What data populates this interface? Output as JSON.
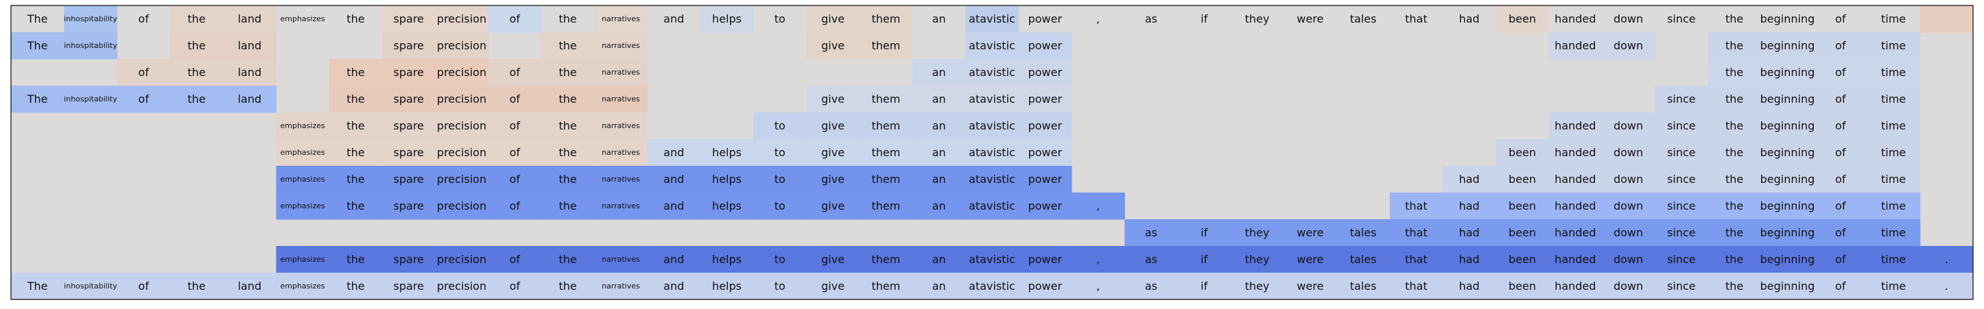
{
  "chart_data": {
    "type": "heatmap",
    "tokens": [
      "The",
      "inhospitability",
      "of",
      "the",
      "land",
      "emphasizes",
      "the",
      "spare",
      "precision",
      "of",
      "the",
      "narratives",
      "and",
      "helps",
      "to",
      "give",
      "them",
      "an",
      "atavistic",
      "power",
      ",",
      "as",
      "if",
      "they",
      "were",
      "tales",
      "that",
      "had",
      "been",
      "handed",
      "down",
      "since",
      "the",
      "beginning",
      "of",
      "time",
      "."
    ],
    "small_tokens": [
      1,
      5,
      11
    ],
    "rows": [
      {
        "show": [
          1,
          1,
          1,
          1,
          1,
          1,
          1,
          1,
          1,
          1,
          1,
          1,
          1,
          1,
          1,
          1,
          1,
          1,
          1,
          1,
          1,
          1,
          1,
          1,
          1,
          1,
          1,
          1,
          1,
          1,
          1,
          1,
          1,
          1,
          1,
          1,
          0
        ],
        "colors": [
          "",
          "#a9c4f0",
          "",
          "#e4d3c9",
          "#e4d3c9",
          "",
          "",
          "#e5d5cb",
          "#e5d5cb",
          "#cbd7ea",
          "",
          "#e3d6cd",
          "",
          "#d0d8e8",
          "",
          "#e2d5cc",
          "#e2d5cc",
          "",
          "#bccdeb",
          "",
          "",
          "",
          "",
          "",
          "",
          "",
          "",
          "",
          "#e3d5cb",
          "",
          "",
          "",
          "",
          "",
          "",
          "",
          "#e7ccc0"
        ]
      },
      {
        "show": [
          1,
          1,
          0,
          1,
          1,
          0,
          0,
          1,
          1,
          0,
          1,
          1,
          0,
          0,
          0,
          1,
          1,
          0,
          1,
          1,
          0,
          0,
          0,
          0,
          0,
          0,
          0,
          0,
          0,
          1,
          1,
          0,
          1,
          1,
          1,
          1,
          0
        ],
        "colors": [
          "#a4bef0",
          "#a4bef0",
          "",
          "#e4d0c5",
          "#e4d0c5",
          "",
          "",
          "#e3d2c7",
          "#e3d2c7",
          "",
          "#e3d4ca",
          "#e3d4ca",
          "",
          "",
          "",
          "#e3d4ca",
          "#e3d4ca",
          "",
          "#c6d3ec",
          "#c6d3ec",
          "",
          "",
          "",
          "",
          "",
          "",
          "",
          "",
          "",
          "#cdd6e9",
          "#cdd6e9",
          "",
          "#cbd5e9",
          "#cbd5e9",
          "#cbd5e9",
          "#cbd5e9",
          ""
        ]
      },
      {
        "show": [
          0,
          0,
          1,
          1,
          1,
          0,
          1,
          1,
          1,
          1,
          1,
          1,
          0,
          0,
          0,
          0,
          0,
          1,
          1,
          1,
          0,
          0,
          0,
          0,
          0,
          0,
          0,
          0,
          0,
          0,
          0,
          0,
          1,
          1,
          1,
          1,
          0
        ],
        "colors": [
          "",
          "",
          "#e3d2c8",
          "#e3d2c8",
          "#e3d2c8",
          "",
          "#e8cbbb",
          "#e8cbbb",
          "#e8cbbb",
          "#e3d2c8",
          "#e3d2c8",
          "#e3d2c8",
          "",
          "",
          "",
          "",
          "",
          "#cbd6ea",
          "#cbd6ea",
          "#cbd6ea",
          "",
          "",
          "",
          "",
          "",
          "",
          "",
          "",
          "",
          "",
          "",
          "",
          "#cbd6ea",
          "#cbd6ea",
          "#cbd6ea",
          "#cbd6ea",
          ""
        ]
      },
      {
        "show": [
          1,
          1,
          1,
          1,
          1,
          0,
          1,
          1,
          1,
          1,
          1,
          1,
          0,
          0,
          0,
          1,
          1,
          1,
          1,
          1,
          0,
          0,
          0,
          0,
          0,
          0,
          0,
          0,
          0,
          0,
          0,
          1,
          1,
          1,
          1,
          1,
          0
        ],
        "colors": [
          "#a3bdf2",
          "#a3bdf2",
          "#a3bdf2",
          "#a3bdf2",
          "#a3bdf2",
          "",
          "#e6cabc",
          "#e6cabc",
          "#e6cabc",
          "#e6cabc",
          "#e6cabc",
          "#e6cabc",
          "",
          "",
          "",
          "#d0d8e8",
          "#d0d8e8",
          "#d0d8e8",
          "#d0d8e8",
          "#d0d8e8",
          "",
          "",
          "",
          "",
          "",
          "",
          "",
          "",
          "",
          "",
          "",
          "#cbd5ea",
          "#cbd5ea",
          "#cbd5ea",
          "#cbd5ea",
          "#cbd5ea",
          ""
        ]
      },
      {
        "show": [
          0,
          0,
          0,
          0,
          0,
          1,
          1,
          1,
          1,
          1,
          1,
          1,
          0,
          0,
          1,
          1,
          1,
          1,
          1,
          1,
          0,
          0,
          0,
          0,
          0,
          0,
          0,
          0,
          0,
          1,
          1,
          1,
          1,
          1,
          1,
          1,
          0
        ],
        "colors": [
          "",
          "",
          "",
          "",
          "",
          "#e4d3ca",
          "#e4d3ca",
          "#e4d3ca",
          "#e4d3ca",
          "#e4d3ca",
          "#e4d3ca",
          "#e4d3ca",
          "",
          "",
          "#c5d2ec",
          "#c5d2ec",
          "#c5d2ec",
          "#c5d2ec",
          "#c5d2ec",
          "#c5d2ec",
          "",
          "",
          "",
          "",
          "",
          "",
          "",
          "",
          "",
          "#cbd5ea",
          "#cbd5ea",
          "#cbd5ea",
          "#cbd5ea",
          "#cbd5ea",
          "#cbd5ea",
          "#cbd5ea",
          ""
        ]
      },
      {
        "show": [
          0,
          0,
          0,
          0,
          0,
          1,
          1,
          1,
          1,
          1,
          1,
          1,
          1,
          1,
          1,
          1,
          1,
          1,
          1,
          1,
          0,
          0,
          0,
          0,
          0,
          0,
          0,
          0,
          1,
          1,
          1,
          1,
          1,
          1,
          1,
          1,
          0
        ],
        "colors": [
          "",
          "",
          "",
          "",
          "",
          "#e4d4ca",
          "#e4d4ca",
          "#e4d4ca",
          "#e4d4ca",
          "#e4d4ca",
          "#e4d4ca",
          "#e4d4ca",
          "#c9d6ec",
          "#c9d6ec",
          "#c9d6ec",
          "#c9d6ec",
          "#c9d6ec",
          "#c9d6ec",
          "#c9d6ec",
          "#c9d6ec",
          "",
          "",
          "",
          "",
          "",
          "",
          "",
          "",
          "#cbd5ea",
          "#cbd5ea",
          "#cbd5ea",
          "#cbd5ea",
          "#cbd5ea",
          "#cbd5ea",
          "#cbd5ea",
          "#cbd5ea",
          ""
        ]
      },
      {
        "show": [
          0,
          0,
          0,
          0,
          0,
          1,
          1,
          1,
          1,
          1,
          1,
          1,
          1,
          1,
          1,
          1,
          1,
          1,
          1,
          1,
          0,
          0,
          0,
          0,
          0,
          0,
          0,
          1,
          1,
          1,
          1,
          1,
          1,
          1,
          1,
          1,
          0
        ],
        "colors": [
          "",
          "",
          "",
          "",
          "",
          "#7393ed",
          "#7393ed",
          "#7393ed",
          "#7393ed",
          "#7393ed",
          "#7393ed",
          "#7393ed",
          "#7393ed",
          "#7393ed",
          "#7393ed",
          "#7393ed",
          "#7393ed",
          "#7393ed",
          "#7393ed",
          "#7393ed",
          "",
          "",
          "",
          "",
          "",
          "",
          "",
          "#cad5ea",
          "#cad5ea",
          "#cad5ea",
          "#cad5ea",
          "#cad5ea",
          "#cad5ea",
          "#cad5ea",
          "#cad5ea",
          "#cad5ea",
          ""
        ]
      },
      {
        "show": [
          0,
          0,
          0,
          0,
          0,
          1,
          1,
          1,
          1,
          1,
          1,
          1,
          1,
          1,
          1,
          1,
          1,
          1,
          1,
          1,
          1,
          0,
          0,
          0,
          0,
          0,
          1,
          1,
          1,
          1,
          1,
          1,
          1,
          1,
          1,
          1,
          0
        ],
        "colors": [
          "",
          "",
          "",
          "",
          "",
          "#7595ee",
          "#7595ee",
          "#7595ee",
          "#7595ee",
          "#7595ee",
          "#7595ee",
          "#7595ee",
          "#7595ee",
          "#7595ee",
          "#7595ee",
          "#7595ee",
          "#7595ee",
          "#7595ee",
          "#7595ee",
          "#7595ee",
          "#7595ee",
          "",
          "",
          "",
          "",
          "",
          "#9cb6f5",
          "#9cb6f5",
          "#9cb6f5",
          "#9cb6f5",
          "#9cb6f5",
          "#9cb6f5",
          "#9cb6f5",
          "#9cb6f5",
          "#9cb6f5",
          "#9cb6f5",
          ""
        ]
      },
      {
        "show": [
          0,
          0,
          0,
          0,
          0,
          0,
          0,
          0,
          0,
          0,
          0,
          0,
          0,
          0,
          0,
          0,
          0,
          0,
          0,
          0,
          0,
          1,
          1,
          1,
          1,
          1,
          1,
          1,
          1,
          1,
          1,
          1,
          1,
          1,
          1,
          1,
          0
        ],
        "colors": [
          "",
          "",
          "",
          "",
          "",
          "",
          "",
          "",
          "",
          "",
          "",
          "",
          "",
          "",
          "",
          "",
          "",
          "",
          "",
          "",
          "",
          "#7a9aee",
          "#7a9aee",
          "#7a9aee",
          "#7a9aee",
          "#7a9aee",
          "#7a9aee",
          "#7a9aee",
          "#7a9aee",
          "#7a9aee",
          "#7a9aee",
          "#7a9aee",
          "#7a9aee",
          "#7a9aee",
          "#7a9aee",
          "#7a9aee",
          ""
        ]
      },
      {
        "show": [
          0,
          0,
          0,
          0,
          0,
          1,
          1,
          1,
          1,
          1,
          1,
          1,
          1,
          1,
          1,
          1,
          1,
          1,
          1,
          1,
          1,
          1,
          1,
          1,
          1,
          1,
          1,
          1,
          1,
          1,
          1,
          1,
          1,
          1,
          1,
          1,
          1
        ],
        "colors": [
          "",
          "",
          "",
          "",
          "",
          "#5b77e0",
          "#5b77e0",
          "#5b77e0",
          "#5b77e0",
          "#5b77e0",
          "#5b77e0",
          "#5b77e0",
          "#5b77e0",
          "#5b77e0",
          "#5b77e0",
          "#5b77e0",
          "#5b77e0",
          "#5b77e0",
          "#5b77e0",
          "#5b77e0",
          "#5b77e0",
          "#5b77e0",
          "#5b77e0",
          "#5b77e0",
          "#5b77e0",
          "#5b77e0",
          "#5b77e0",
          "#5b77e0",
          "#5b77e0",
          "#5b77e0",
          "#5b77e0",
          "#5b77e0",
          "#5b77e0",
          "#5b77e0",
          "#5b77e0",
          "#5b77e0",
          "#5b77e0"
        ]
      },
      {
        "show": [
          1,
          1,
          1,
          1,
          1,
          1,
          1,
          1,
          1,
          1,
          1,
          1,
          1,
          1,
          1,
          1,
          1,
          1,
          1,
          1,
          1,
          1,
          1,
          1,
          1,
          1,
          1,
          1,
          1,
          1,
          1,
          1,
          1,
          1,
          1,
          1,
          1
        ],
        "colors": [
          "#c4d2ee",
          "#c4d2ee",
          "#c4d2ee",
          "#c4d2ee",
          "#c4d2ee",
          "#c4d2ee",
          "#c4d2ee",
          "#c4d2ee",
          "#c4d2ee",
          "#c4d2ee",
          "#c4d2ee",
          "#c4d2ee",
          "#c4d2ee",
          "#c4d2ee",
          "#c4d2ee",
          "#c4d2ee",
          "#c4d2ee",
          "#c4d2ee",
          "#c4d2ee",
          "#c4d2ee",
          "#c4d2ee",
          "#c4d2ee",
          "#c4d2ee",
          "#c4d2ee",
          "#c4d2ee",
          "#c4d2ee",
          "#c4d2ee",
          "#c4d2ee",
          "#c4d2ee",
          "#c4d2ee",
          "#c4d2ee",
          "#c4d2ee",
          "#c4d2ee",
          "#c4d2ee",
          "#c4d2ee",
          "#c4d2ee",
          "#c4d2ee"
        ]
      }
    ],
    "background_color": "#dcdbda",
    "border_color": "#333333",
    "text_color": "#111111"
  }
}
